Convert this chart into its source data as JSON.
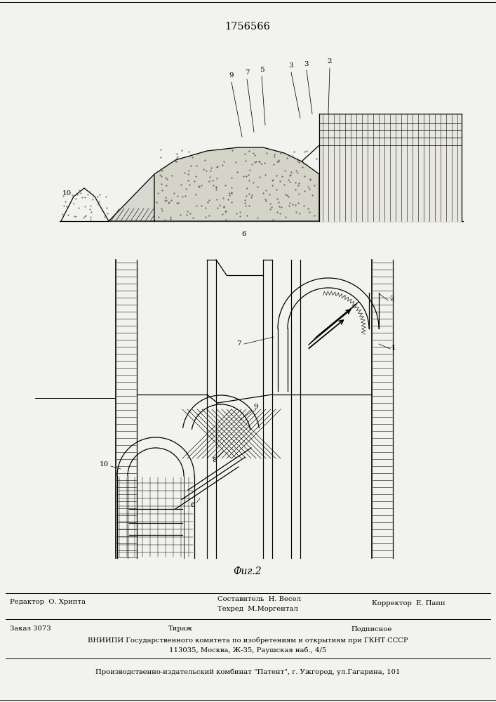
{
  "patent_number": "1756566",
  "bg": "#f2f2ee",
  "fig2_label": "Фиг.2",
  "footer_editor": "Редактор  О. Хрипта",
  "footer_comp_title": "Составитель  Н. Весел",
  "footer_tech": "Техред  М.Моргентал",
  "footer_corrector": "Корректор  Е. Папп",
  "footer_order": "Заказ 3073",
  "footer_tirazh": "Тираж",
  "footer_podp": "Подписное",
  "footer_vniipи": "ВНИИПИ Государственного комитета по изобретениям и открытиям при ГКНТ СССР",
  "footer_address": "113035, Москва, Ж-35, Раушская наб., 4/5",
  "footer_patent": "Производственно-издательский комбинат \"Патент\", г. Ужгород, ул.Гагарина, 101"
}
